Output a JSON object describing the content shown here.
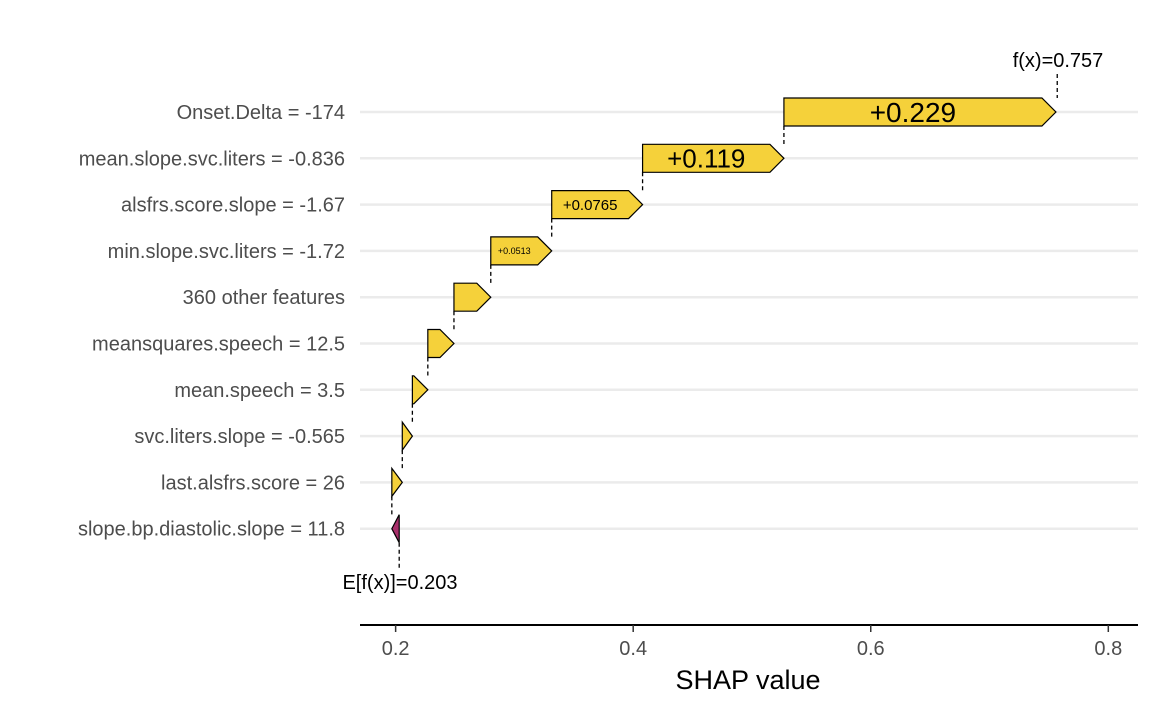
{
  "chart_data": {
    "type": "waterfall",
    "xlabel": "SHAP value",
    "xlim": [
      0.17,
      0.825
    ],
    "xticks": [
      0.2,
      0.4,
      0.6,
      0.8
    ],
    "xtick_labels": [
      "0.2",
      "0.4",
      "0.6",
      "0.8"
    ],
    "base_value": 0.203,
    "base_label": "E[f(x)]=0.203",
    "final_value": 0.757,
    "final_label": "f(x)=0.757",
    "grid": "horizontal",
    "colors": {
      "positive": "#F5D13A",
      "negative": "#A8306B",
      "grid": "#EBEBEB",
      "axis": "#000000",
      "label": "#4D4D4D"
    },
    "features": [
      {
        "label": "Onset.Delta = -174",
        "contribution": 0.229,
        "value_label": "+0.229",
        "direction": "positive"
      },
      {
        "label": "mean.slope.svc.liters = -0.836",
        "contribution": 0.119,
        "value_label": "+0.119",
        "direction": "positive"
      },
      {
        "label": "alsfrs.score.slope = -1.67",
        "contribution": 0.0765,
        "value_label": "+0.0765",
        "direction": "positive"
      },
      {
        "label": "min.slope.svc.liters = -1.72",
        "contribution": 0.0513,
        "value_label": "+0.0513",
        "direction": "positive"
      },
      {
        "label": "360 other features",
        "contribution": 0.031,
        "value_label": "",
        "direction": "positive"
      },
      {
        "label": "meansquares.speech = 12.5",
        "contribution": 0.022,
        "value_label": "",
        "direction": "positive"
      },
      {
        "label": "mean.speech = 3.5",
        "contribution": 0.013,
        "value_label": "",
        "direction": "positive"
      },
      {
        "label": "svc.liters.slope = -0.565",
        "contribution": 0.0085,
        "value_label": "",
        "direction": "positive"
      },
      {
        "label": "last.alsfrs.score = 26",
        "contribution": 0.0088,
        "value_label": "",
        "direction": "positive"
      },
      {
        "label": "slope.bp.diastolic.slope = 11.8",
        "contribution": -0.0062,
        "value_label": "",
        "direction": "negative"
      }
    ]
  }
}
